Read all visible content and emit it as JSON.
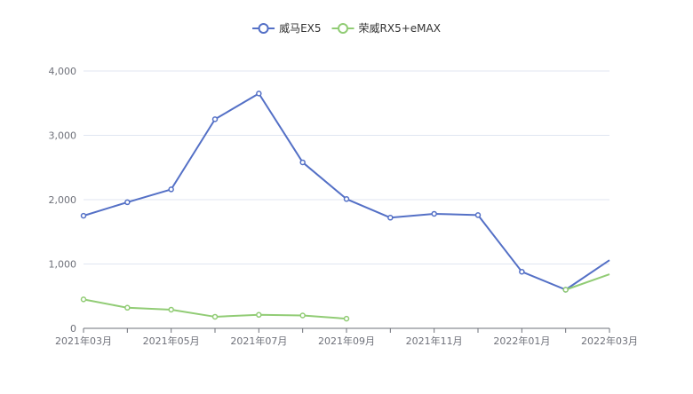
{
  "chart_data": {
    "type": "line",
    "title": "",
    "xlabel": "",
    "ylabel": "",
    "legend_position": "top-center",
    "grid": true,
    "ylim": [
      0,
      4000
    ],
    "y_ticks": [
      0,
      1000,
      2000,
      3000,
      4000
    ],
    "y_tick_labels": [
      "0",
      "1,000",
      "2,000",
      "3,000",
      "4,000"
    ],
    "x": [
      "2021年03月",
      "2021年04月",
      "2021年05月",
      "2021年06月",
      "2021年07月",
      "2021年08月",
      "2021年09月",
      "2021年10月",
      "2021年11月",
      "2021年12月",
      "2022年01月",
      "2022年02月",
      "2022年03月"
    ],
    "x_tick_labels": [
      "2021年03月",
      "2021年05月",
      "2021年07月",
      "2021年09月",
      "2021年11月",
      "2022年01月",
      "2022年03月"
    ],
    "series": [
      {
        "name": "威马EX5",
        "color": "#5470c6",
        "values": [
          1750,
          1960,
          2160,
          3250,
          3650,
          2580,
          2010,
          1720,
          1780,
          1760,
          880,
          600,
          1060
        ]
      },
      {
        "name": "荣威RX5+eMAX",
        "color": "#91cc75",
        "values": [
          450,
          320,
          290,
          180,
          210,
          200,
          150,
          null,
          null,
          null,
          null,
          600,
          840
        ]
      }
    ]
  }
}
